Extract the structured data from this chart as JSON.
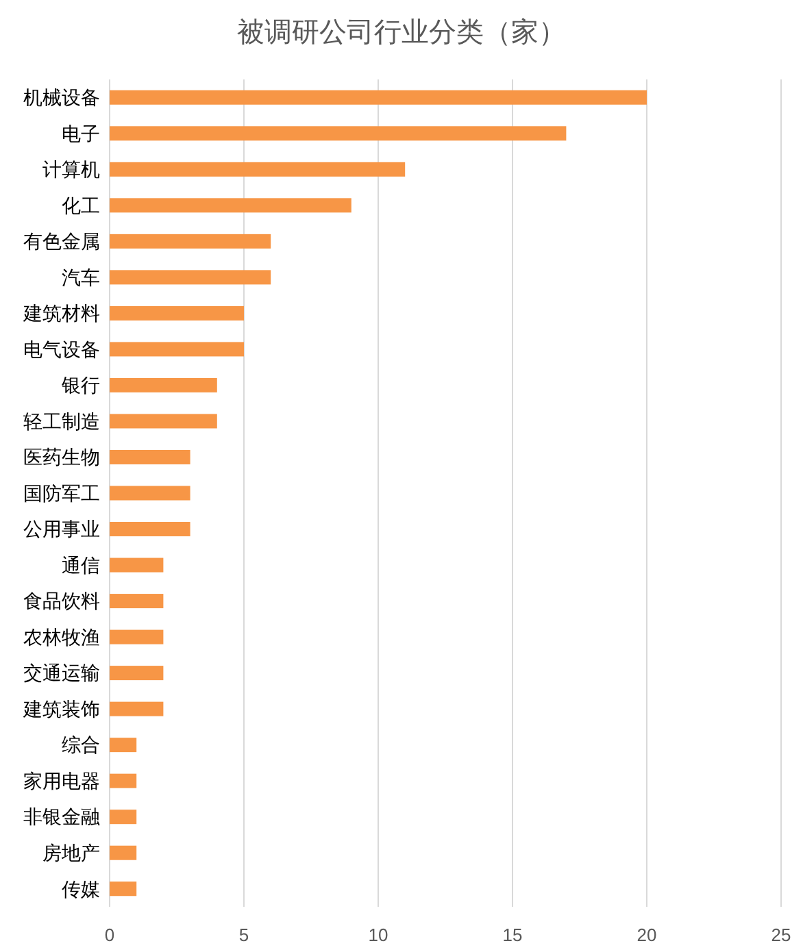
{
  "chart_data": {
    "type": "bar",
    "orientation": "horizontal",
    "title": "被调研公司行业分类（家）",
    "categories": [
      "机械设备",
      "电子",
      "计算机",
      "化工",
      "有色金属",
      "汽车",
      "建筑材料",
      "电气设备",
      "银行",
      "轻工制造",
      "医药生物",
      "国防军工",
      "公用事业",
      "通信",
      "食品饮料",
      "农林牧渔",
      "交通运输",
      "建筑装饰",
      "综合",
      "家用电器",
      "非银金融",
      "房地产",
      "传媒"
    ],
    "values": [
      20,
      17,
      11,
      9,
      6,
      6,
      5,
      5,
      4,
      4,
      3,
      3,
      3,
      2,
      2,
      2,
      2,
      2,
      1,
      1,
      1,
      1,
      1
    ],
    "color": "#f79646",
    "xlim": [
      0,
      25
    ],
    "xticks": [
      0,
      5,
      10,
      15,
      20,
      25
    ],
    "grid": "x"
  }
}
